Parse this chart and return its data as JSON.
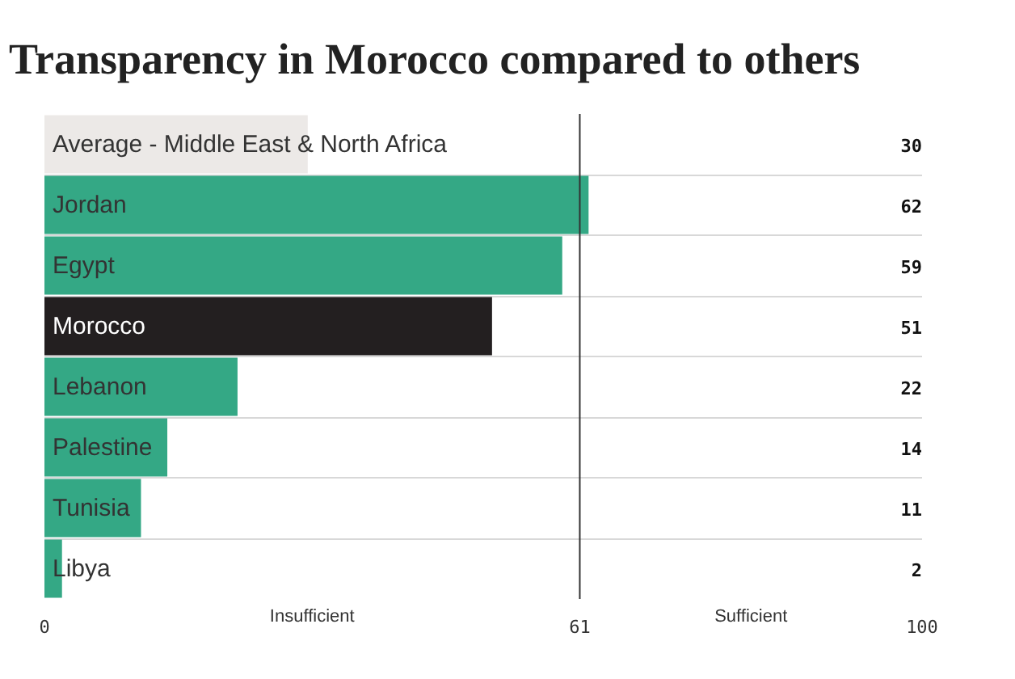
{
  "chart_data": {
    "type": "bar",
    "orientation": "horizontal",
    "title": "Transparency in Morocco compared to others",
    "categories": [
      "Average - Middle East & North Africa",
      "Jordan",
      "Egypt",
      "Morocco",
      "Lebanon",
      "Palestine",
      "Tunisia",
      "Libya"
    ],
    "values": [
      30,
      62,
      59,
      51,
      22,
      14,
      11,
      2
    ],
    "colors": [
      "#ece9e7",
      "#34a885",
      "#34a885",
      "#231f20",
      "#34a885",
      "#34a885",
      "#34a885",
      "#34a885"
    ],
    "xlim": [
      0,
      100
    ],
    "xticks": [
      0,
      61,
      100
    ],
    "ref_lines": [
      {
        "axis": "x",
        "value": 61,
        "color": "#333333"
      }
    ],
    "annotations": [
      "Insufficient",
      "Sufficient"
    ],
    "data_labels": true,
    "grid": "y"
  }
}
